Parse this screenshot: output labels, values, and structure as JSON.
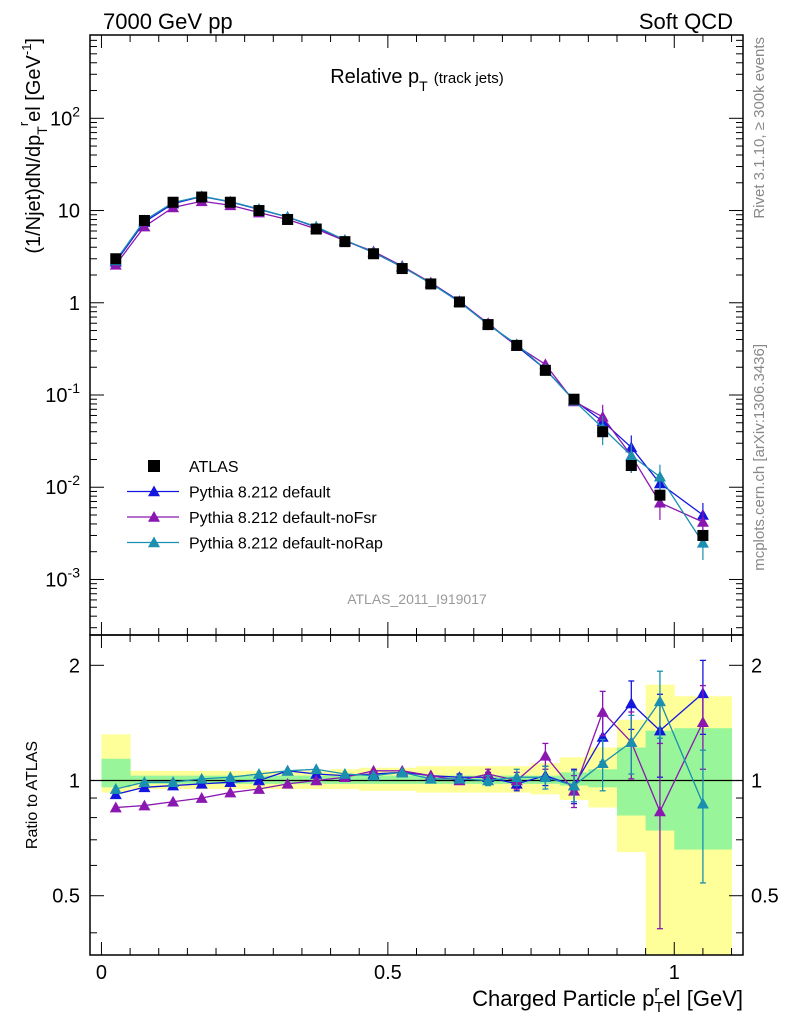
{
  "header": {
    "left": "7000 GeV pp",
    "right": "Soft QCD"
  },
  "side_labels": {
    "rivet": "Rivet 3.1.10, ≥ 300k events",
    "mcplots": "mcplots.cern.ch [arXiv:1306.3436]"
  },
  "colors": {
    "atlas": "#000000",
    "default": "#1515e0",
    "noFsr": "#8a18b0",
    "noRap": "#1a8fb0",
    "band_inner": "#99f599",
    "band_outer": "#ffff99"
  },
  "chart_data": [
    {
      "type": "line",
      "title": "Relative p_T (track jets)",
      "title_main": "Relative p",
      "title_sub": "T",
      "title_small": "(track jets)",
      "analysis": "ATLAS_2011_I919017",
      "ylabel": "(1/Njet)dN/dp_T^rel [GeV^-1]",
      "yscale": "log",
      "xlim": [
        -0.02,
        1.12
      ],
      "ylim": [
        0.00025,
        800
      ],
      "ytick_labels": [
        "10^-3",
        "10^-2",
        "10^-1",
        "1",
        "10",
        "10^2"
      ],
      "x": [
        0.025,
        0.075,
        0.125,
        0.175,
        0.225,
        0.275,
        0.325,
        0.375,
        0.425,
        0.475,
        0.525,
        0.575,
        0.625,
        0.675,
        0.725,
        0.775,
        0.825,
        0.875,
        0.925,
        0.975,
        1.05
      ],
      "x_halfwidths": [
        0.025,
        0.025,
        0.025,
        0.025,
        0.025,
        0.025,
        0.025,
        0.025,
        0.025,
        0.025,
        0.025,
        0.025,
        0.025,
        0.025,
        0.025,
        0.025,
        0.025,
        0.025,
        0.025,
        0.025,
        0.05
      ],
      "series": [
        {
          "name": "ATLAS",
          "key": "atlas",
          "marker": "square",
          "values": [
            3.0,
            7.8,
            12.3,
            14.0,
            12.3,
            10.0,
            8.0,
            6.3,
            4.6,
            3.4,
            2.35,
            1.6,
            1.02,
            0.58,
            0.345,
            0.185,
            0.09,
            0.04,
            0.0172,
            0.0082,
            0.003
          ]
        },
        {
          "name": "Pythia 8.212 default",
          "key": "default",
          "marker": "triangle",
          "values": [
            2.78,
            7.5,
            11.9,
            14.2,
            12.4,
            10.3,
            8.5,
            6.6,
            4.75,
            3.5,
            2.45,
            1.65,
            1.04,
            0.59,
            0.34,
            0.19,
            0.088,
            0.052,
            0.027,
            0.011,
            0.005
          ]
        },
        {
          "name": "Pythia 8.212 default-noFsr",
          "key": "noFsr",
          "marker": "triangle",
          "values": [
            2.58,
            6.7,
            10.8,
            12.6,
            11.4,
            9.5,
            8.0,
            6.3,
            4.7,
            3.6,
            2.5,
            1.65,
            1.02,
            0.6,
            0.34,
            0.215,
            0.085,
            0.058,
            0.022,
            0.0068,
            0.0042
          ]
        },
        {
          "name": "Pythia 8.212 default-noRap",
          "key": "noRap",
          "marker": "triangle",
          "values": [
            2.88,
            7.8,
            12.2,
            14.3,
            12.5,
            10.4,
            8.5,
            6.7,
            4.8,
            3.5,
            2.45,
            1.62,
            1.02,
            0.58,
            0.355,
            0.19,
            0.087,
            0.044,
            0.022,
            0.013,
            0.0025
          ]
        }
      ],
      "legend": [
        "ATLAS",
        "Pythia 8.212 default",
        "Pythia 8.212 default-noFsr",
        "Pythia 8.212 default-noRap"
      ],
      "legend_position": "lower-left"
    },
    {
      "type": "line",
      "title": "Ratio to ATLAS",
      "ylabel": "Ratio to ATLAS",
      "xlabel": "Charged Particle p_T^rel [GeV]",
      "xlabel_main": "Charged Particle p",
      "xlabel_sub": "T",
      "xlabel_sup": "r",
      "xlabel_end": "el [GeV]",
      "yscale": "log",
      "xlim": [
        -0.02,
        1.12
      ],
      "ylim": [
        0.35,
        2.4
      ],
      "xtick_labels": [
        "0",
        "0.5",
        "1"
      ],
      "ytick_labels": [
        "0.5",
        "1",
        "2"
      ],
      "reference_line": 1,
      "bands": {
        "inner": [
          [
            0.96,
            1.14
          ],
          [
            0.98,
            1.03
          ],
          [
            0.98,
            1.03
          ],
          [
            0.98,
            1.03
          ],
          [
            0.98,
            1.03
          ],
          [
            0.98,
            1.03
          ],
          [
            0.98,
            1.03
          ],
          [
            0.98,
            1.03
          ],
          [
            0.98,
            1.03
          ],
          [
            0.98,
            1.03
          ],
          [
            0.98,
            1.03
          ],
          [
            0.98,
            1.03
          ],
          [
            0.98,
            1.03
          ],
          [
            0.98,
            1.03
          ],
          [
            0.98,
            1.03
          ],
          [
            0.98,
            1.03
          ],
          [
            0.97,
            1.05
          ],
          [
            0.96,
            1.07
          ],
          [
            0.81,
            1.22
          ],
          [
            0.74,
            1.35
          ],
          [
            0.66,
            1.37
          ]
        ],
        "outer": [
          [
            0.93,
            1.32
          ],
          [
            0.95,
            1.06
          ],
          [
            0.95,
            1.06
          ],
          [
            0.95,
            1.06
          ],
          [
            0.95,
            1.06
          ],
          [
            0.95,
            1.06
          ],
          [
            0.95,
            1.06
          ],
          [
            0.95,
            1.06
          ],
          [
            0.95,
            1.07
          ],
          [
            0.94,
            1.08
          ],
          [
            0.94,
            1.08
          ],
          [
            0.93,
            1.09
          ],
          [
            0.93,
            1.09
          ],
          [
            0.93,
            1.09
          ],
          [
            0.93,
            1.09
          ],
          [
            0.92,
            1.11
          ],
          [
            0.89,
            1.15
          ],
          [
            0.85,
            1.22
          ],
          [
            0.65,
            1.44
          ],
          [
            0.28,
            1.78
          ],
          [
            0.28,
            1.66
          ]
        ]
      },
      "series": [
        {
          "name": "Pythia 8.212 default",
          "key": "default",
          "values": [
            0.92,
            0.96,
            0.97,
            0.98,
            0.99,
            1.0,
            1.06,
            1.04,
            1.03,
            1.04,
            1.05,
            1.03,
            1.02,
            1.02,
            0.98,
            1.03,
            0.97,
            1.3,
            1.59,
            1.35,
            1.69
          ],
          "errors": [
            0.01,
            0.01,
            0.01,
            0.01,
            0.01,
            0.01,
            0.01,
            0.01,
            0.01,
            0.01,
            0.01,
            0.01,
            0.02,
            0.03,
            0.04,
            0.06,
            0.1,
            0.18,
            0.23,
            0.33,
            0.37
          ]
        },
        {
          "name": "Pythia 8.212 default-noFsr",
          "key": "noFsr",
          "values": [
            0.85,
            0.86,
            0.88,
            0.9,
            0.93,
            0.95,
            0.98,
            1.0,
            1.02,
            1.06,
            1.06,
            1.03,
            1.0,
            1.04,
            1.0,
            1.16,
            0.94,
            1.51,
            1.26,
            0.83,
            1.42
          ],
          "errors": [
            0.01,
            0.01,
            0.01,
            0.01,
            0.01,
            0.01,
            0.01,
            0.01,
            0.01,
            0.01,
            0.01,
            0.01,
            0.02,
            0.03,
            0.05,
            0.09,
            0.09,
            0.2,
            0.25,
            0.42,
            0.35
          ]
        },
        {
          "name": "Pythia 8.212 default-noRap",
          "key": "noRap",
          "values": [
            0.95,
            0.99,
            0.99,
            1.01,
            1.02,
            1.04,
            1.06,
            1.07,
            1.04,
            1.03,
            1.05,
            1.01,
            1.01,
            1.0,
            1.02,
            1.02,
            0.97,
            1.11,
            1.26,
            1.61,
            0.87
          ],
          "errors": [
            0.01,
            0.01,
            0.01,
            0.01,
            0.01,
            0.01,
            0.01,
            0.01,
            0.01,
            0.01,
            0.01,
            0.01,
            0.02,
            0.03,
            0.05,
            0.07,
            0.09,
            0.17,
            0.22,
            0.32,
            0.33
          ]
        }
      ]
    }
  ]
}
